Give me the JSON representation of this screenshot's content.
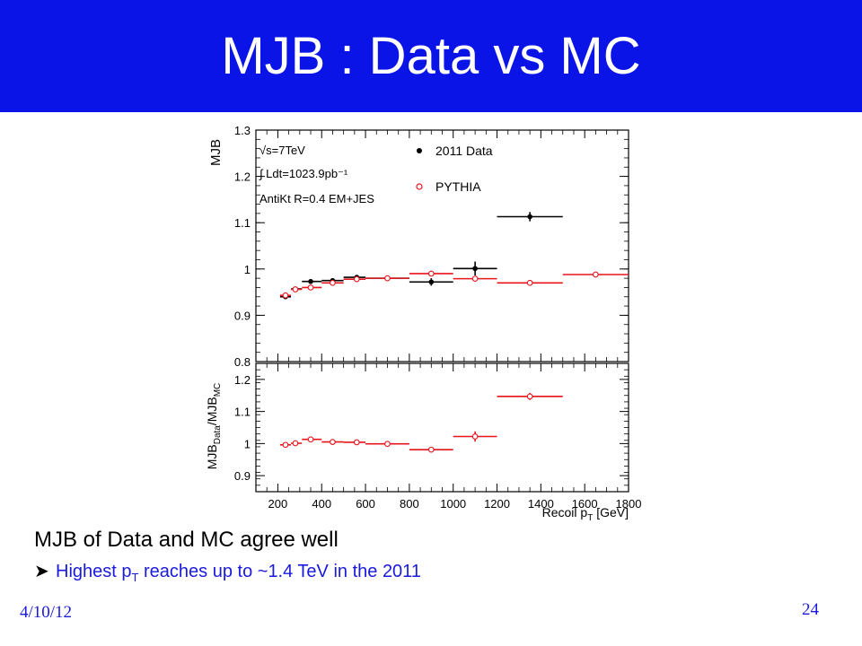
{
  "slide": {
    "title": "MJB : Data vs MC",
    "main_text": "MJB of Data and MC agree well",
    "bullet_prefix": "Highest p",
    "bullet_sub": "T",
    "bullet_suffix": " reaches up to ~1.4 TeV in the 2011",
    "date": "4/10/12",
    "page_number": "24"
  },
  "colors": {
    "title_bar": "#0a14e6",
    "data_series": "#000000",
    "mc_series": "#e8141c",
    "bullet_text": "#1a1adc"
  },
  "chart_data": [
    {
      "type": "scatter",
      "panel": "top",
      "ylabel": "MJB",
      "xlim": [
        100,
        1800
      ],
      "ylim": [
        0.8,
        1.3
      ],
      "yticks": [
        0.8,
        0.9,
        1,
        1.1,
        1.2,
        1.3
      ],
      "annotations": [
        "√s=7TeV",
        "∫ Ldt=1023.9pb⁻¹",
        "AntiKt R=0.4 EM+JES"
      ],
      "legend": {
        "placement": "top-right",
        "entries": [
          "2011 Data",
          "PYTHIA"
        ]
      },
      "series": [
        {
          "name": "2011 Data",
          "marker": "filled-circle",
          "points": [
            {
              "x": 235,
              "xlo": 210,
              "xhi": 260,
              "y": 0.94,
              "yerr": 0.003
            },
            {
              "x": 280,
              "xlo": 260,
              "xhi": 310,
              "y": 0.957,
              "yerr": 0.003
            },
            {
              "x": 350,
              "xlo": 310,
              "xhi": 400,
              "y": 0.973,
              "yerr": 0.003
            },
            {
              "x": 450,
              "xlo": 400,
              "xhi": 500,
              "y": 0.975,
              "yerr": 0.003
            },
            {
              "x": 560,
              "xlo": 500,
              "xhi": 600,
              "y": 0.982,
              "yerr": 0.003
            },
            {
              "x": 700,
              "xlo": 600,
              "xhi": 800,
              "y": 0.98,
              "yerr": 0.004
            },
            {
              "x": 900,
              "xlo": 800,
              "xhi": 1000,
              "y": 0.972,
              "yerr": 0.008
            },
            {
              "x": 1100,
              "xlo": 1000,
              "xhi": 1200,
              "y": 1.001,
              "yerr": 0.015
            },
            {
              "x": 1350,
              "xlo": 1200,
              "xhi": 1500,
              "y": 1.113,
              "yerr": 0.01
            }
          ]
        },
        {
          "name": "PYTHIA",
          "marker": "open-circle",
          "points": [
            {
              "x": 235,
              "xlo": 210,
              "xhi": 260,
              "y": 0.943,
              "yerr": 0.003
            },
            {
              "x": 280,
              "xlo": 260,
              "xhi": 310,
              "y": 0.956,
              "yerr": 0.003
            },
            {
              "x": 350,
              "xlo": 310,
              "xhi": 400,
              "y": 0.96,
              "yerr": 0.003
            },
            {
              "x": 450,
              "xlo": 400,
              "xhi": 500,
              "y": 0.97,
              "yerr": 0.003
            },
            {
              "x": 560,
              "xlo": 500,
              "xhi": 600,
              "y": 0.978,
              "yerr": 0.003
            },
            {
              "x": 700,
              "xlo": 600,
              "xhi": 800,
              "y": 0.98,
              "yerr": 0.003
            },
            {
              "x": 900,
              "xlo": 800,
              "xhi": 1000,
              "y": 0.99,
              "yerr": 0.004
            },
            {
              "x": 1100,
              "xlo": 1000,
              "xhi": 1200,
              "y": 0.979,
              "yerr": 0.005
            },
            {
              "x": 1350,
              "xlo": 1200,
              "xhi": 1500,
              "y": 0.97,
              "yerr": 0.006
            },
            {
              "x": 1650,
              "xlo": 1500,
              "xhi": 1800,
              "y": 0.988,
              "yerr": 0.004
            }
          ]
        }
      ]
    },
    {
      "type": "scatter",
      "panel": "bottom",
      "ylabel_main": "MJB",
      "ylabel_sub1": "Data",
      "ylabel_mid": "/MJB",
      "ylabel_sub2": "MC",
      "xlabel_main": "Recoil p",
      "xlabel_sub": "T",
      "xlabel_unit": " [GeV]",
      "xlim": [
        100,
        1800
      ],
      "ylim": [
        0.85,
        1.25
      ],
      "yticks": [
        0.9,
        1,
        1.1,
        1.2
      ],
      "xticks": [
        200,
        400,
        600,
        800,
        1000,
        1200,
        1400,
        1600,
        1800
      ],
      "series": [
        {
          "name": "",
          "marker": "open-circle",
          "points": [
            {
              "x": 235,
              "xlo": 210,
              "xhi": 260,
              "y": 0.996,
              "yerr": 0.004
            },
            {
              "x": 280,
              "xlo": 260,
              "xhi": 310,
              "y": 1.001,
              "yerr": 0.004
            },
            {
              "x": 350,
              "xlo": 310,
              "xhi": 400,
              "y": 1.013,
              "yerr": 0.004
            },
            {
              "x": 450,
              "xlo": 400,
              "xhi": 500,
              "y": 1.005,
              "yerr": 0.004
            },
            {
              "x": 560,
              "xlo": 500,
              "xhi": 600,
              "y": 1.004,
              "yerr": 0.004
            },
            {
              "x": 700,
              "xlo": 600,
              "xhi": 800,
              "y": 0.999,
              "yerr": 0.005
            },
            {
              "x": 900,
              "xlo": 800,
              "xhi": 1000,
              "y": 0.981,
              "yerr": 0.008
            },
            {
              "x": 1100,
              "xlo": 1000,
              "xhi": 1200,
              "y": 1.022,
              "yerr": 0.016
            },
            {
              "x": 1350,
              "xlo": 1200,
              "xhi": 1500,
              "y": 1.147,
              "yerr": 0.011
            }
          ]
        }
      ]
    }
  ]
}
